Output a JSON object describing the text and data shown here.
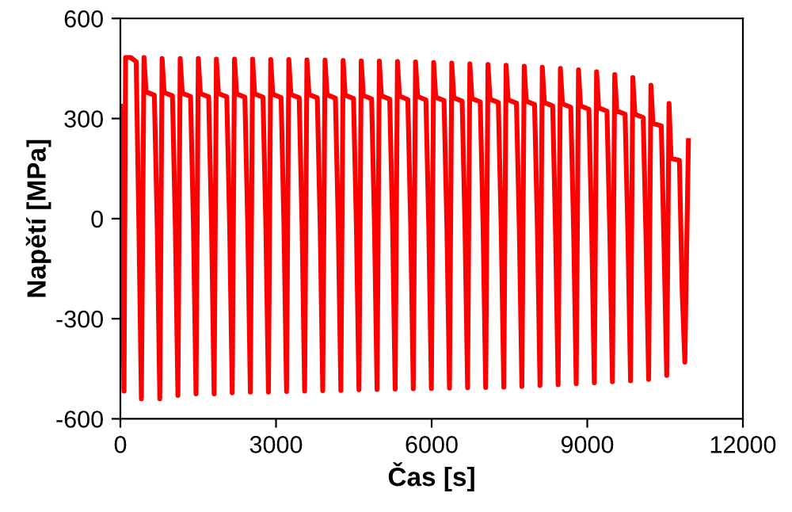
{
  "chart_data": {
    "type": "line",
    "xlabel": "Čas [s]",
    "ylabel": "Napětí [MPa]",
    "xlim": [
      0,
      12000
    ],
    "xticks": [
      0,
      3000,
      6000,
      9000,
      12000
    ],
    "ylim": [
      -600,
      600
    ],
    "yticks": [
      -600,
      -300,
      0,
      300,
      600
    ],
    "grid": false,
    "marker": "none",
    "line_style": "solid",
    "series": [
      {
        "color": "#ff0000",
        "x": [
          0,
          70,
          100,
          200,
          305,
          355,
          405,
          455,
          495,
          655,
          710,
          760,
          804,
          844,
          1004,
          1059,
          1109,
          1153,
          1193,
          1353,
          1408,
          1458,
          1502,
          1542,
          1702,
          1757,
          1807,
          1851,
          1891,
          2051,
          2106,
          2156,
          2200,
          2240,
          2400,
          2455,
          2505,
          2549,
          2589,
          2749,
          2804,
          2854,
          2898,
          2938,
          3098,
          3153,
          3203,
          3247,
          3287,
          3447,
          3502,
          3552,
          3596,
          3636,
          3796,
          3851,
          3901,
          3945,
          3985,
          4145,
          4200,
          4250,
          4294,
          4334,
          4494,
          4549,
          4599,
          4643,
          4683,
          4843,
          4898,
          4948,
          4992,
          5032,
          5192,
          5247,
          5297,
          5341,
          5381,
          5541,
          5596,
          5646,
          5690,
          5730,
          5890,
          5945,
          5995,
          6039,
          6079,
          6239,
          6294,
          6344,
          6388,
          6428,
          6588,
          6643,
          6693,
          6737,
          6777,
          6937,
          6992,
          7042,
          7086,
          7126,
          7286,
          7341,
          7391,
          7435,
          7475,
          7635,
          7690,
          7740,
          7784,
          7824,
          7984,
          8039,
          8089,
          8133,
          8173,
          8333,
          8388,
          8438,
          8482,
          8522,
          8682,
          8737,
          8787,
          8831,
          8871,
          9031,
          9086,
          9136,
          9180,
          9220,
          9380,
          9435,
          9485,
          9529,
          9569,
          9729,
          9784,
          9834,
          9878,
          9918,
          10078,
          10133,
          10183,
          10227,
          10267,
          10427,
          10482,
          10532,
          10576,
          10616,
          10776,
          10831,
          10881,
          10950
        ],
        "values": [
          337,
          -517,
          483,
          483,
          470,
          -5,
          -540,
          483,
          380,
          370,
          -20,
          -540,
          480,
          378,
          368,
          -20,
          -530,
          480,
          376,
          366,
          -20,
          -525,
          480,
          375,
          365,
          -20,
          -525,
          478,
          375,
          365,
          -20,
          -522,
          478,
          374,
          364,
          -20,
          -520,
          478,
          374,
          364,
          -20,
          -520,
          477,
          373,
          363,
          -20,
          -518,
          477,
          372,
          362,
          -20,
          -517,
          476,
          372,
          362,
          -20,
          -516,
          475,
          371,
          361,
          -20,
          -515,
          474,
          370,
          360,
          -20,
          -513,
          473,
          369,
          359,
          -20,
          -512,
          472,
          368,
          358,
          -20,
          -511,
          471,
          367,
          357,
          -20,
          -510,
          470,
          366,
          356,
          -25,
          -509,
          468,
          364,
          354,
          -25,
          -508,
          466,
          362,
          352,
          -25,
          -507,
          464,
          360,
          350,
          -25,
          -506,
          462,
          358,
          348,
          -30,
          -505,
          460,
          356,
          346,
          -30,
          -503,
          457,
          352,
          342,
          -30,
          -500,
          454,
          348,
          338,
          -35,
          -498,
          450,
          344,
          334,
          -35,
          -495,
          446,
          338,
          328,
          -40,
          -492,
          440,
          332,
          322,
          -45,
          -489,
          432,
          323,
          313,
          -50,
          -486,
          423,
          313,
          303,
          -60,
          -482,
          400,
          285,
          278,
          -100,
          -470,
          345,
          180,
          175,
          -225,
          -430,
          234
        ]
      }
    ]
  }
}
